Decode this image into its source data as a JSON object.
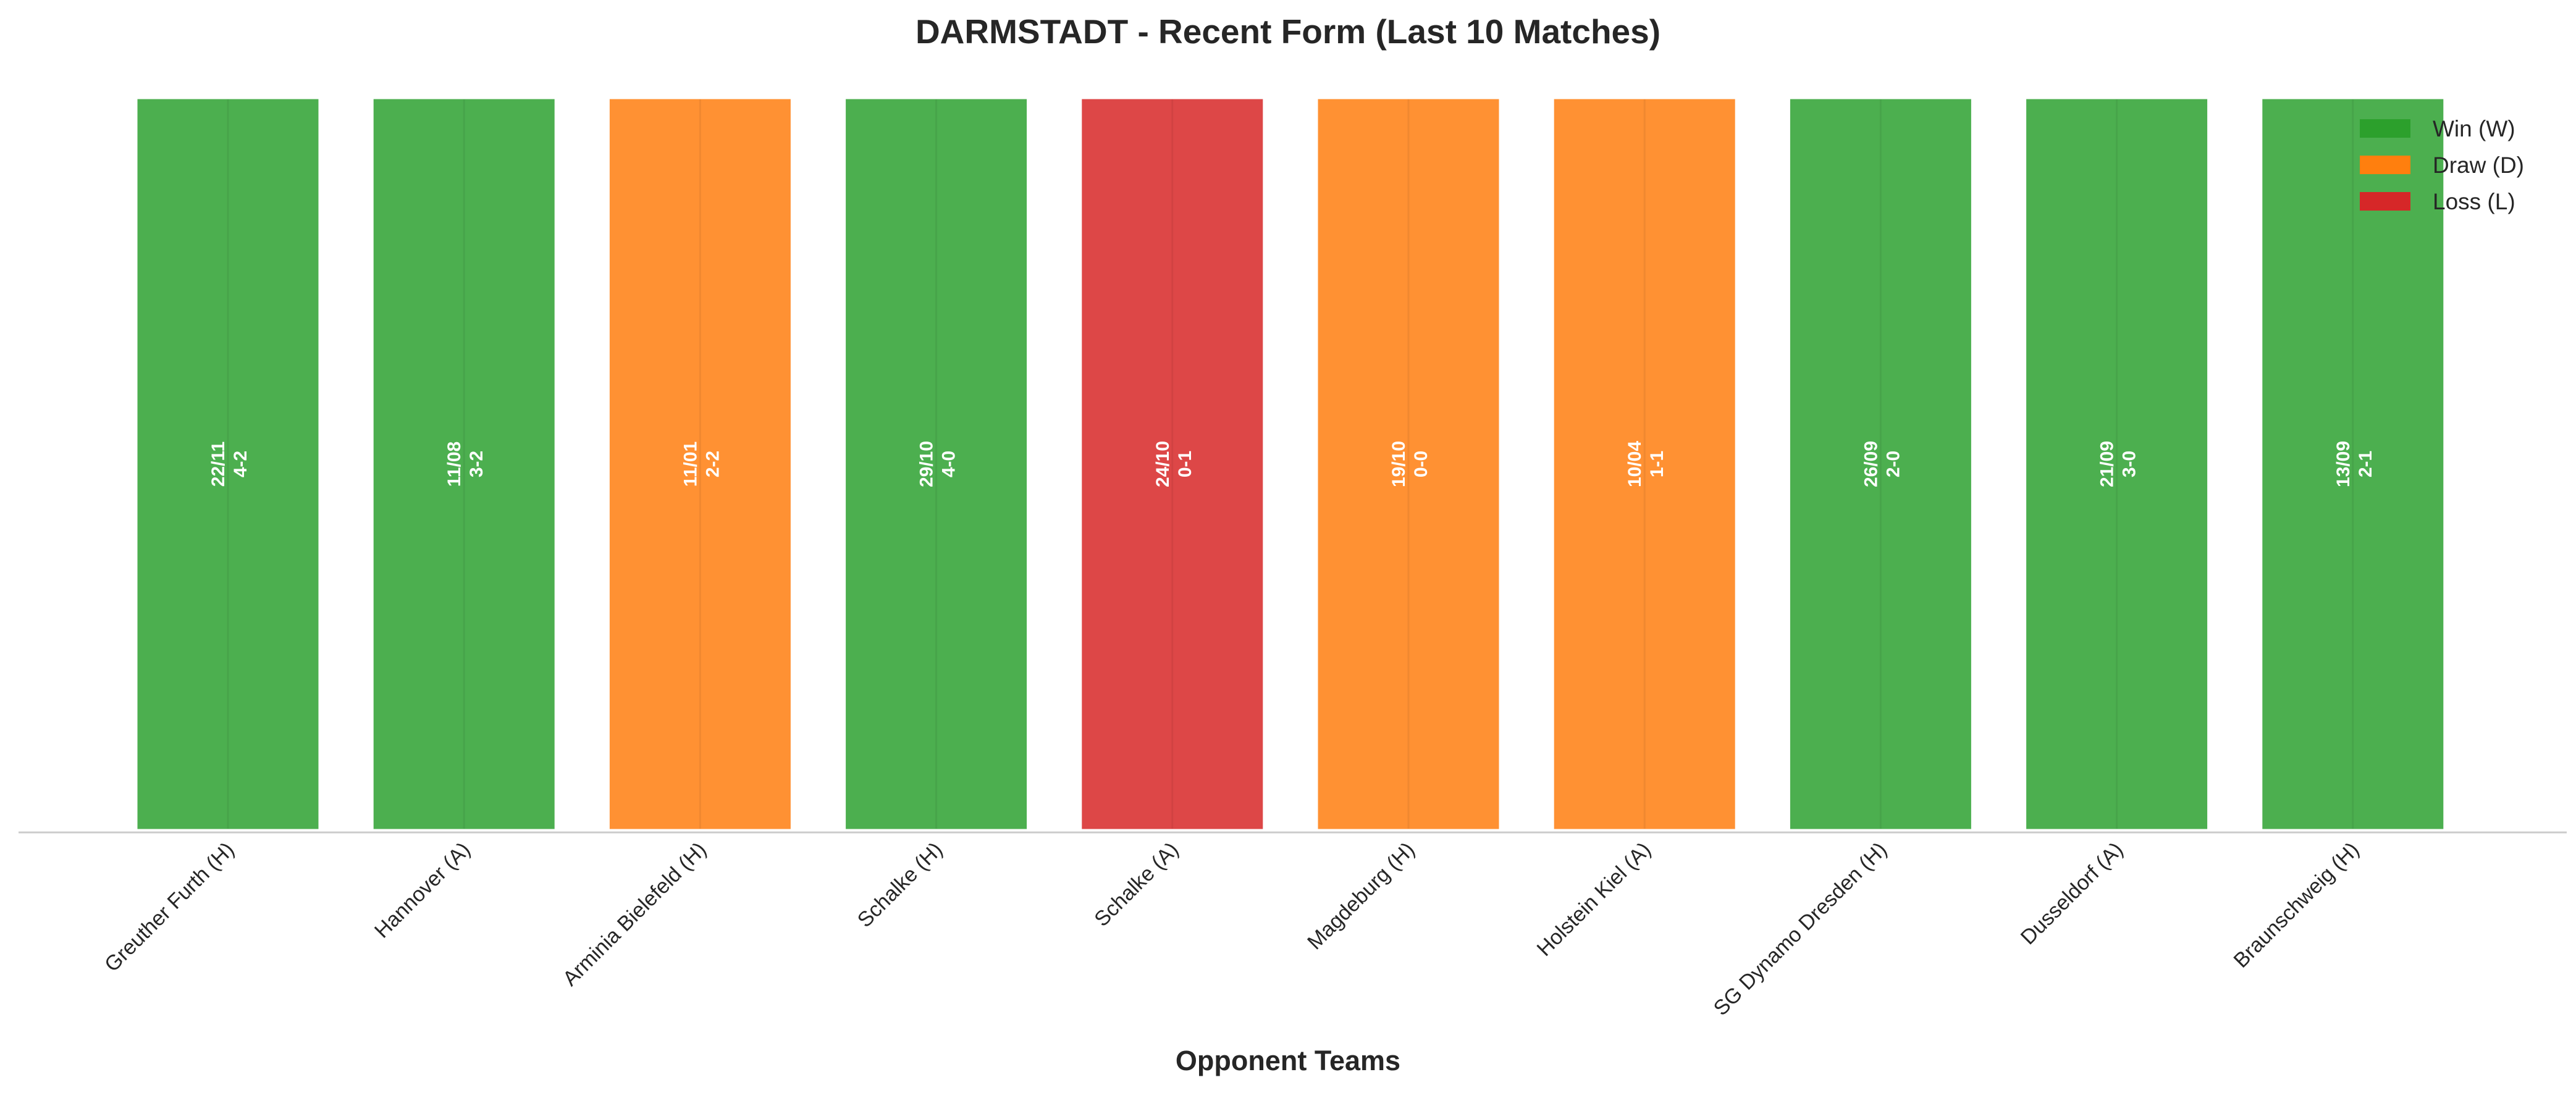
{
  "chart_data": {
    "type": "bar",
    "title": "DARMSTADT - Recent Form (Last 10 Matches)",
    "xlabel": "Opponent Teams",
    "ylabel": "",
    "ylim": [
      0,
      1
    ],
    "grid": false,
    "legend_position": "top-right",
    "categories": [
      "Greuther Furth (H)",
      "Hannover (A)",
      "Arminia Bielefeld (H)",
      "Schalke (H)",
      "Schalke (A)",
      "Magdeburg (H)",
      "Holstein Kiel (A)",
      "SG Dynamo Dresden (H)",
      "Dusseldorf (A)",
      "Braunschweig (H)"
    ],
    "values": [
      1,
      1,
      1,
      1,
      1,
      1,
      1,
      1,
      1,
      1
    ],
    "results": [
      "W",
      "W",
      "D",
      "W",
      "L",
      "D",
      "D",
      "W",
      "W",
      "W"
    ],
    "dates": [
      "22/11",
      "11/08",
      "11/01",
      "29/10",
      "24/10",
      "19/10",
      "10/04",
      "26/09",
      "21/09",
      "13/09"
    ],
    "scores": [
      "4-2",
      "3-2",
      "2-2",
      "4-0",
      "0-1",
      "0-0",
      "1-1",
      "2-0",
      "3-0",
      "2-1"
    ],
    "legend": [
      {
        "key": "W",
        "label": "Win (W)",
        "color": "#2ca02c"
      },
      {
        "key": "D",
        "label": "Draw (D)",
        "color": "#ff7f0e"
      },
      {
        "key": "L",
        "label": "Loss (L)",
        "color": "#d62728"
      }
    ],
    "colors": {
      "W": "#4caf4f",
      "D": "#ff9133",
      "L": "#dd4747"
    }
  }
}
